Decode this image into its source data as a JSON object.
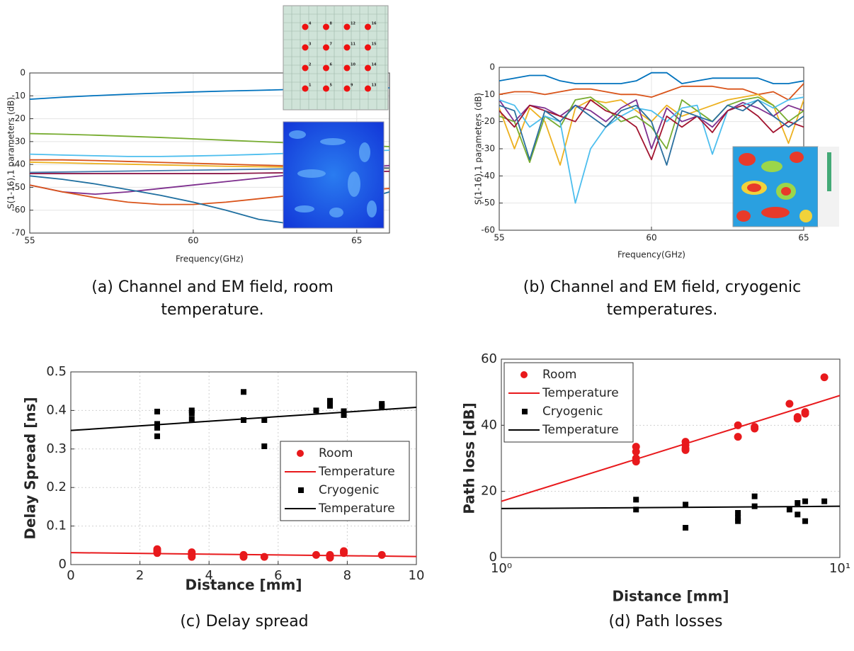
{
  "chart_data": [
    {
      "type": "line",
      "caption": "(a) Channel and EM field, room temperature.",
      "xlabel": "Frequency(GHz)",
      "ylabel": "S(1-16),1 parameters (dB)",
      "xlim": [
        55,
        66
      ],
      "xticks": [
        55,
        60,
        65
      ],
      "ylim": [
        -70,
        0
      ],
      "yticks": [
        0,
        -10,
        -20,
        -30,
        -40,
        -50,
        -60,
        -70
      ],
      "grid": true,
      "x": [
        55,
        56,
        57,
        58,
        59,
        60,
        61,
        62,
        63,
        64,
        65,
        66
      ],
      "inset_labels": [
        "4",
        "8",
        "12",
        "16",
        "3",
        "7",
        "11",
        "15",
        "2",
        "6",
        "10",
        "14",
        "1",
        "5",
        "9",
        "13"
      ],
      "series": [
        {
          "color": "#0072bd",
          "values": [
            -11.5,
            -10.6,
            -9.9,
            -9.3,
            -8.8,
            -8.3,
            -7.9,
            -7.6,
            -7.2,
            -6.9,
            -6.7,
            -6.5
          ]
        },
        {
          "color": "#77ac30",
          "values": [
            -26.5,
            -26.8,
            -27.2,
            -27.7,
            -28.2,
            -28.8,
            -29.4,
            -30,
            -30.6,
            -31.2,
            -31.7,
            -32.2
          ]
        },
        {
          "color": "#4dbeee",
          "values": [
            -35.5,
            -35.9,
            -36.2,
            -36.5,
            -36.5,
            -36.3,
            -36,
            -35.6,
            -35.1,
            -34.6,
            -34.2,
            -33.8
          ]
        },
        {
          "color": "#d95319",
          "values": [
            -38,
            -38,
            -38.3,
            -38.7,
            -39.1,
            -39.5,
            -39.9,
            -40.3,
            -40.7,
            -41,
            -41.3,
            -41.5
          ]
        },
        {
          "color": "#edb120",
          "values": [
            -39,
            -39.3,
            -39.6,
            -39.9,
            -40.2,
            -40.5,
            -40.8,
            -41,
            -41.2,
            -41.4,
            -41.6,
            -41.8
          ]
        },
        {
          "color": "#4a7fb0",
          "values": [
            -43.5,
            -43.3,
            -43.1,
            -42.9,
            -42.7,
            -42.5,
            -42.3,
            -42.1,
            -41.9,
            -41.8,
            -41.7,
            -41.6
          ]
        },
        {
          "color": "#8b1a4a",
          "values": [
            -44,
            -44,
            -44,
            -44,
            -44,
            -44,
            -44,
            -43.8,
            -43.6,
            -43.4,
            -43.2,
            -43
          ]
        },
        {
          "color": "#7e2f8e",
          "values": [
            -49,
            -52,
            -53,
            -52,
            -50.5,
            -49,
            -47.5,
            -46,
            -44.5,
            -43,
            -41.5,
            -40.5
          ]
        },
        {
          "color": "#d95319",
          "values": [
            -49,
            -52,
            -54.5,
            -56.5,
            -57.5,
            -57.5,
            -56.5,
            -55,
            -53.5,
            -52.5,
            -51.5,
            -50.5
          ]
        },
        {
          "color": "#1f6fa0",
          "values": [
            -45,
            -46.5,
            -48.5,
            -51,
            -53.5,
            -56.5,
            -60,
            -64,
            -66,
            -62,
            -56,
            -52
          ]
        }
      ]
    },
    {
      "type": "line",
      "caption": "(b) Channel and EM field, cryogenic temperatures.",
      "xlabel": "Frequency(GHz)",
      "ylabel": "S(1-16),1 parameters (dB)",
      "xlim": [
        55,
        65
      ],
      "xticks": [
        55,
        60,
        65
      ],
      "ylim": [
        -60,
        0
      ],
      "yticks": [
        0,
        -10,
        -20,
        -30,
        -40,
        -50,
        -60
      ],
      "grid": true,
      "x": [
        55,
        55.5,
        56,
        56.5,
        57,
        57.5,
        58,
        58.5,
        59,
        59.5,
        60,
        60.5,
        61,
        61.5,
        62,
        62.5,
        63,
        63.5,
        64,
        64.5,
        65
      ],
      "series": [
        {
          "color": "#0072bd",
          "values": [
            -5,
            -4,
            -3,
            -3,
            -5,
            -6,
            -6,
            -6,
            -6,
            -5,
            -2,
            -2,
            -6,
            -5,
            -4,
            -4,
            -4,
            -4,
            -6,
            -6,
            -5
          ]
        },
        {
          "color": "#d95319",
          "values": [
            -10,
            -9,
            -9,
            -10,
            -9,
            -8,
            -8,
            -9,
            -10,
            -10,
            -11,
            -9,
            -7,
            -7,
            -7,
            -8,
            -8,
            -10,
            -9,
            -12,
            -6
          ]
        },
        {
          "color": "#edb120",
          "values": [
            -15,
            -30,
            -15,
            -20,
            -36,
            -15,
            -12,
            -13,
            -12,
            -16,
            -20,
            -14,
            -18,
            -16,
            -14,
            -12,
            -11,
            -10,
            -14,
            -28,
            -12
          ]
        },
        {
          "color": "#7e2f8e",
          "values": [
            -12,
            -20,
            -14,
            -15,
            -18,
            -14,
            -16,
            -20,
            -15,
            -12,
            -30,
            -15,
            -20,
            -18,
            -22,
            -16,
            -13,
            -15,
            -18,
            -14,
            -16
          ]
        },
        {
          "color": "#77ac30",
          "values": [
            -18,
            -20,
            -35,
            -18,
            -22,
            -12,
            -11,
            -15,
            -20,
            -18,
            -22,
            -30,
            -12,
            -16,
            -20,
            -14,
            -12,
            -11,
            -14,
            -20,
            -16
          ]
        },
        {
          "color": "#4dbeee",
          "values": [
            -12,
            -14,
            -22,
            -18,
            -20,
            -50,
            -30,
            -22,
            -18,
            -15,
            -16,
            -20,
            -15,
            -14,
            -32,
            -16,
            -14,
            -12,
            -15,
            -12,
            -11
          ]
        },
        {
          "color": "#a2142f",
          "values": [
            -16,
            -22,
            -14,
            -16,
            -18,
            -20,
            -12,
            -16,
            -18,
            -22,
            -34,
            -18,
            -22,
            -18,
            -24,
            -16,
            -14,
            -18,
            -24,
            -20,
            -22
          ]
        },
        {
          "color": "#2a6f9e",
          "values": [
            -14,
            -16,
            -34,
            -16,
            -20,
            -14,
            -18,
            -22,
            -16,
            -14,
            -20,
            -36,
            -16,
            -18,
            -20,
            -14,
            -16,
            -12,
            -18,
            -22,
            -18
          ]
        }
      ]
    },
    {
      "type": "scatter",
      "caption": "(c) Delay spread",
      "xlabel": "Distance [mm]",
      "ylabel": "Delay Spread [ns]",
      "xlim": [
        0,
        10
      ],
      "xticks": [
        0,
        2,
        4,
        6,
        8,
        10
      ],
      "ylim": [
        0,
        0.5
      ],
      "yticks": [
        0,
        0.1,
        0.2,
        0.3,
        0.4,
        0.5
      ],
      "grid": true,
      "legend": "center right",
      "series": [
        {
          "name": "Room",
          "color": "#e8191c",
          "marker": "circle",
          "x": [
            2.5,
            2.5,
            2.5,
            3.5,
            3.5,
            3.5,
            5,
            5,
            5.6,
            7.1,
            7.5,
            7.5,
            7.5,
            7.9,
            7.9,
            9
          ],
          "values": [
            0.04,
            0.035,
            0.03,
            0.032,
            0.025,
            0.02,
            0.025,
            0.02,
            0.02,
            0.025,
            0.025,
            0.02,
            0.018,
            0.035,
            0.03,
            0.025
          ]
        },
        {
          "name": "Temperature",
          "color": "#e8191c",
          "marker": "line",
          "x": [
            0,
            10
          ],
          "values": [
            0.031,
            0.021
          ]
        },
        {
          "name": "Cryogenic",
          "color": "#000000",
          "marker": "square",
          "x": [
            2.5,
            2.5,
            2.5,
            2.5,
            3.5,
            3.5,
            3.5,
            5,
            5,
            5.6,
            5.6,
            7.1,
            7.5,
            7.5,
            7.9,
            7.9,
            9,
            9
          ],
          "values": [
            0.397,
            0.365,
            0.355,
            0.333,
            0.4,
            0.393,
            0.378,
            0.448,
            0.375,
            0.375,
            0.307,
            0.4,
            0.425,
            0.412,
            0.398,
            0.388,
            0.417,
            0.411
          ]
        },
        {
          "name": "Temperature",
          "color": "#000000",
          "marker": "line",
          "x": [
            0,
            10
          ],
          "values": [
            0.348,
            0.408
          ]
        }
      ]
    },
    {
      "type": "scatter",
      "caption": "(d) Path losses",
      "xlabel": "Distance [mm]",
      "ylabel": "Path loss [dB]",
      "xscale": "log",
      "xlim": [
        1,
        10
      ],
      "xticks": [
        {
          "value": 1,
          "label": "10⁰"
        },
        {
          "value": 10,
          "label": "10¹"
        }
      ],
      "ylim": [
        0,
        60
      ],
      "yticks": [
        0,
        20,
        40,
        60
      ],
      "grid": true,
      "legend": "upper left",
      "series": [
        {
          "name": "Room",
          "color": "#e8191c",
          "marker": "circle",
          "x": [
            2.5,
            2.5,
            2.5,
            2.5,
            3.5,
            3.5,
            3.5,
            3.5,
            5,
            5,
            5.6,
            5.6,
            7.1,
            7.5,
            7.5,
            7.9,
            7.9,
            9
          ],
          "values": [
            33.5,
            32,
            30,
            29,
            35,
            34,
            33,
            32.5,
            40,
            36.5,
            39.5,
            39,
            46.5,
            42.5,
            42,
            44,
            43.5,
            54.5
          ]
        },
        {
          "name": "Temperature",
          "color": "#e8191c",
          "marker": "line",
          "x": [
            1,
            10
          ],
          "values": [
            17,
            49
          ]
        },
        {
          "name": "Cryogenic",
          "color": "#000000",
          "marker": "square",
          "x": [
            2.5,
            2.5,
            3.5,
            3.5,
            5,
            5,
            5,
            5.6,
            5.6,
            7.1,
            7.5,
            7.5,
            7.9,
            7.9,
            9
          ],
          "values": [
            17.5,
            14.5,
            16,
            9,
            13.5,
            12,
            11,
            18.5,
            15.5,
            14.5,
            16.5,
            13,
            17,
            11,
            17
          ]
        },
        {
          "name": "Temperature",
          "color": "#000000",
          "marker": "line",
          "x": [
            1,
            10
          ],
          "values": [
            14.8,
            15.5
          ]
        }
      ]
    }
  ]
}
